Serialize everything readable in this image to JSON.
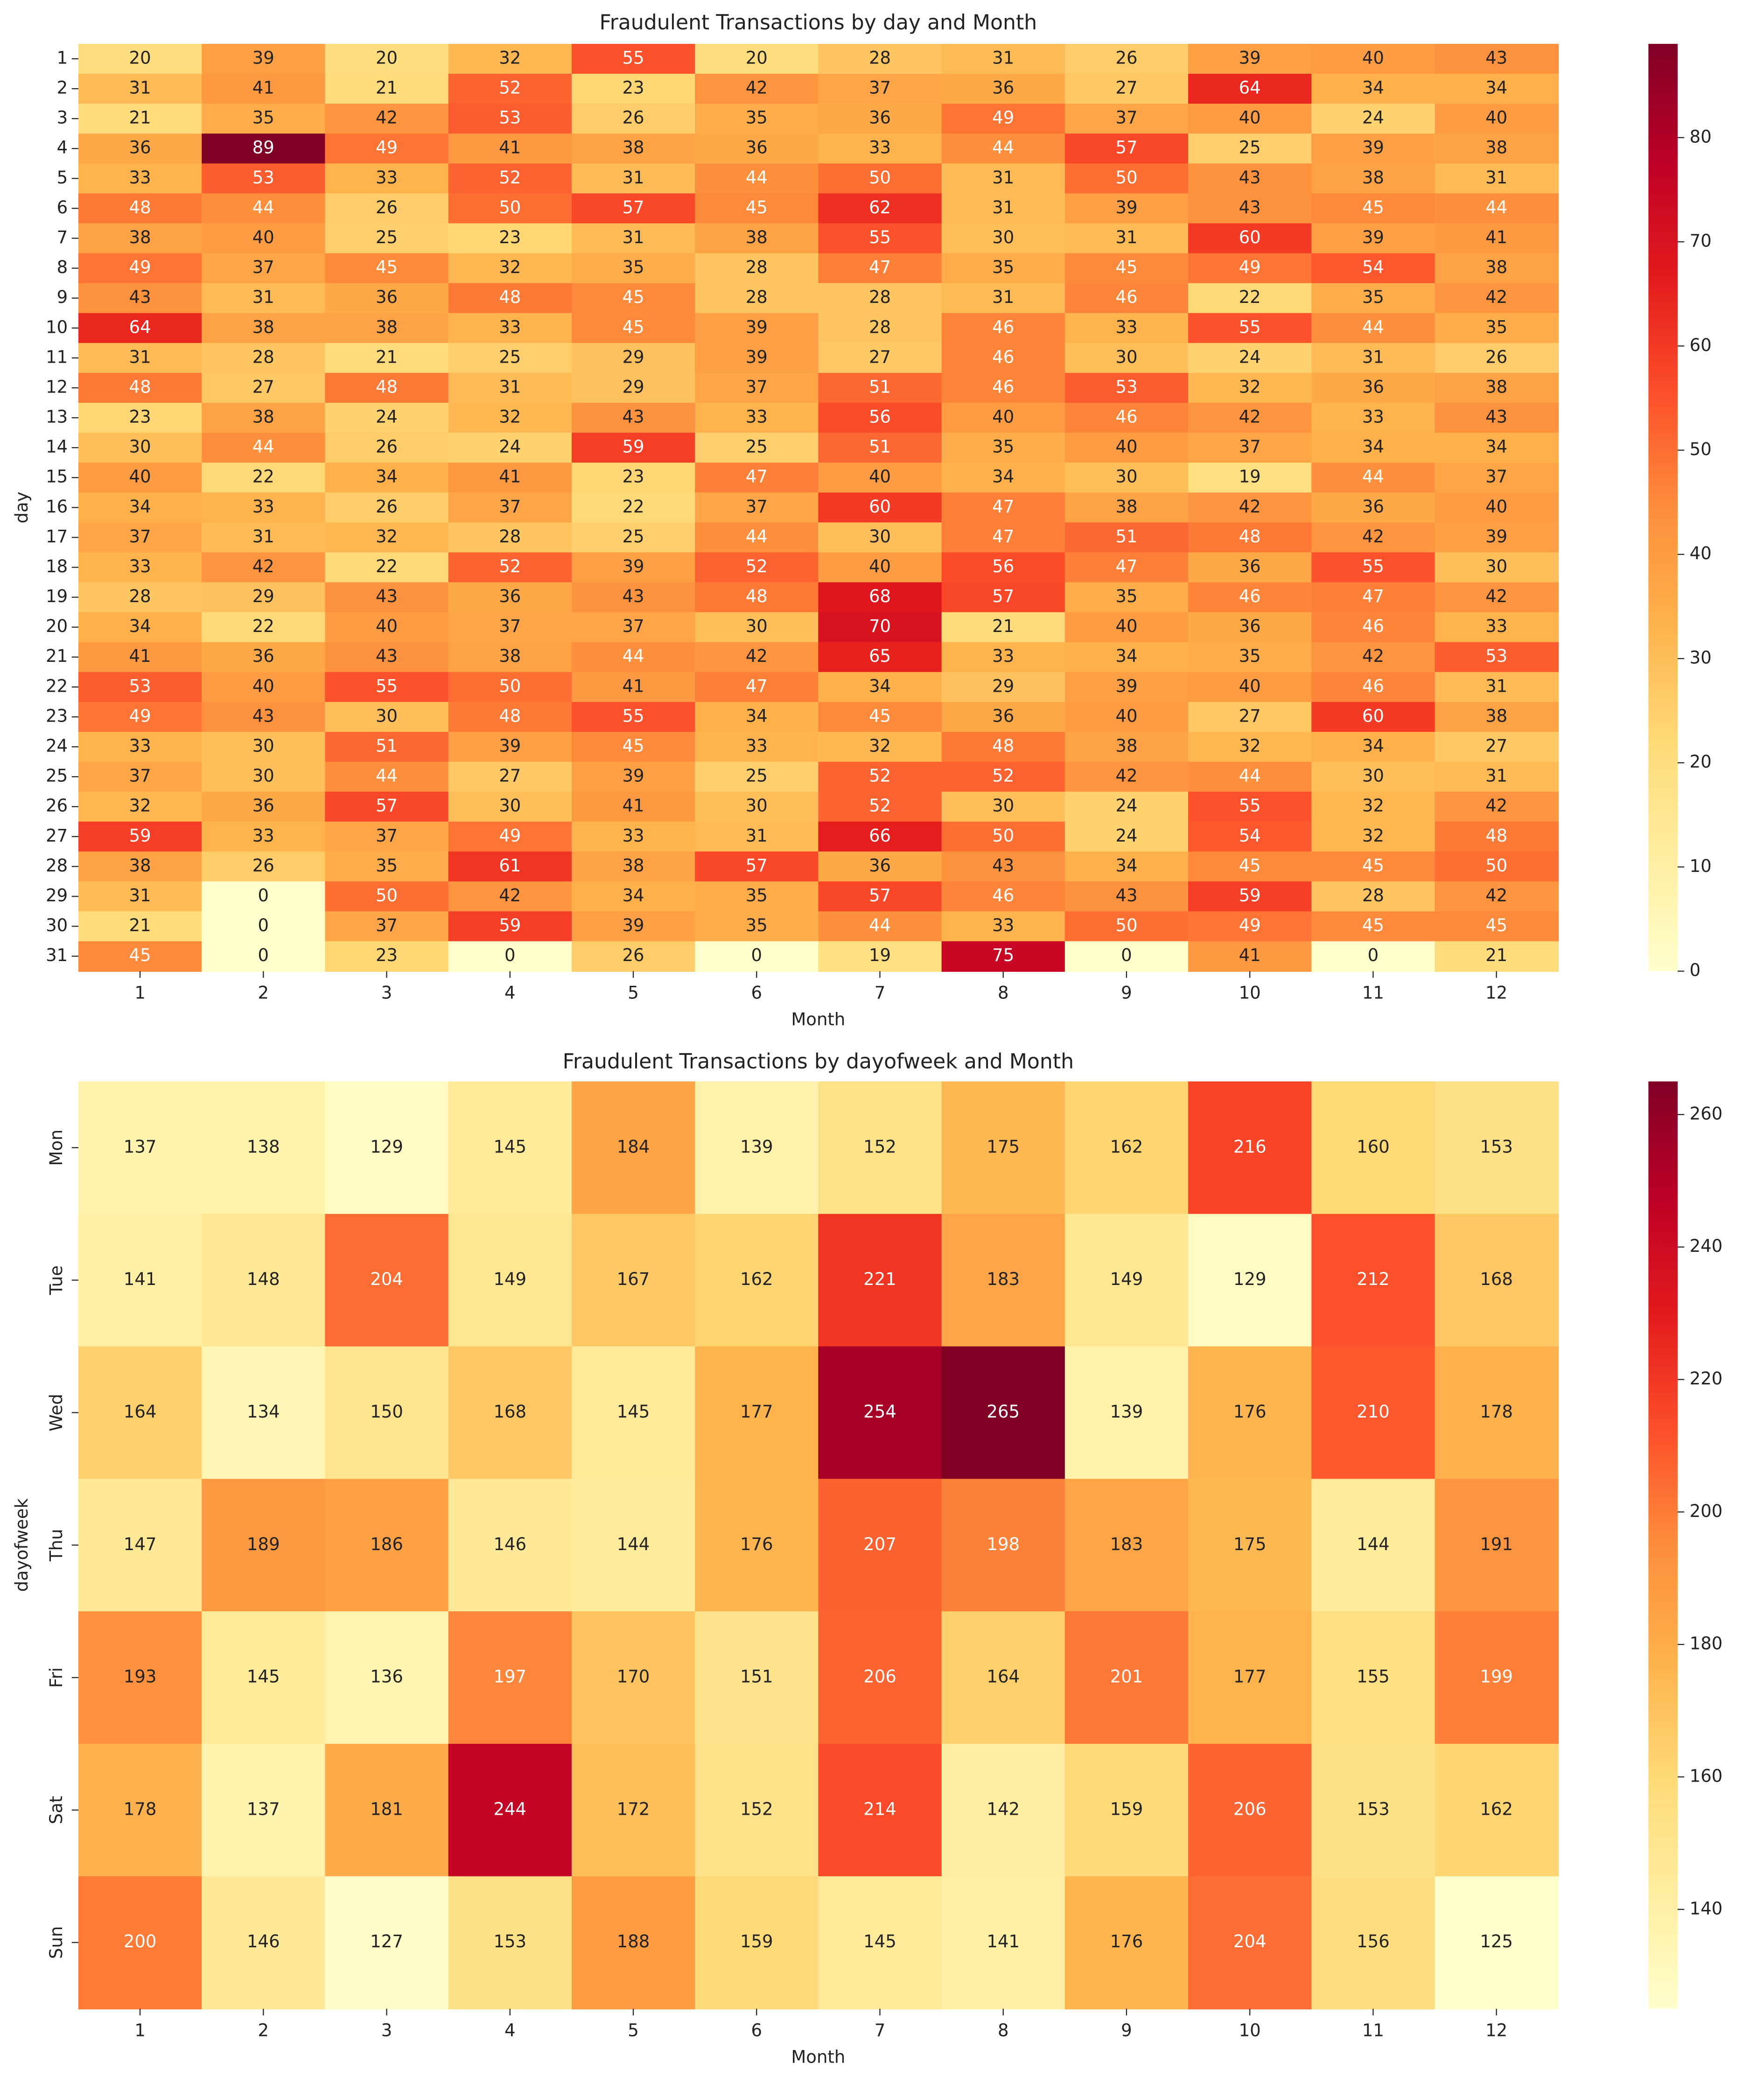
{
  "chart_data": [
    {
      "type": "heatmap",
      "title": "Fraudulent Transactions by day and Month",
      "xlabel": "Month",
      "ylabel": "day",
      "x": [
        1,
        2,
        3,
        4,
        5,
        6,
        7,
        8,
        9,
        10,
        11,
        12
      ],
      "y": [
        1,
        2,
        3,
        4,
        5,
        6,
        7,
        8,
        9,
        10,
        11,
        12,
        13,
        14,
        15,
        16,
        17,
        18,
        19,
        20,
        21,
        22,
        23,
        24,
        25,
        26,
        27,
        28,
        29,
        30,
        31
      ],
      "values": [
        [
          20,
          39,
          20,
          32,
          55,
          20,
          28,
          31,
          26,
          39,
          40,
          43
        ],
        [
          31,
          41,
          21,
          52,
          23,
          42,
          37,
          36,
          27,
          64,
          34,
          34
        ],
        [
          21,
          35,
          42,
          53,
          26,
          35,
          36,
          49,
          37,
          40,
          24,
          40
        ],
        [
          36,
          89,
          49,
          41,
          38,
          36,
          33,
          44,
          57,
          25,
          39,
          38
        ],
        [
          33,
          53,
          33,
          52,
          31,
          44,
          50,
          31,
          50,
          43,
          38,
          31
        ],
        [
          48,
          44,
          26,
          50,
          57,
          45,
          62,
          31,
          39,
          43,
          45,
          44
        ],
        [
          38,
          40,
          25,
          23,
          31,
          38,
          55,
          30,
          31,
          60,
          39,
          41
        ],
        [
          49,
          37,
          45,
          32,
          35,
          28,
          47,
          35,
          45,
          49,
          54,
          38
        ],
        [
          43,
          31,
          36,
          48,
          45,
          28,
          28,
          31,
          46,
          22,
          35,
          42
        ],
        [
          64,
          38,
          38,
          33,
          45,
          39,
          28,
          46,
          33,
          55,
          44,
          35
        ],
        [
          31,
          28,
          21,
          25,
          29,
          39,
          27,
          46,
          30,
          24,
          31,
          26
        ],
        [
          48,
          27,
          48,
          31,
          29,
          37,
          51,
          46,
          53,
          32,
          36,
          38
        ],
        [
          23,
          38,
          24,
          32,
          43,
          33,
          56,
          40,
          46,
          42,
          33,
          43
        ],
        [
          30,
          44,
          26,
          24,
          59,
          25,
          51,
          35,
          40,
          37,
          34,
          34
        ],
        [
          40,
          22,
          34,
          41,
          23,
          47,
          40,
          34,
          30,
          19,
          44,
          37
        ],
        [
          34,
          33,
          26,
          37,
          22,
          37,
          60,
          47,
          38,
          42,
          36,
          40
        ],
        [
          37,
          31,
          32,
          28,
          25,
          44,
          30,
          47,
          51,
          48,
          42,
          39
        ],
        [
          33,
          42,
          22,
          52,
          39,
          52,
          40,
          56,
          47,
          36,
          55,
          30
        ],
        [
          28,
          29,
          43,
          36,
          43,
          48,
          68,
          57,
          35,
          46,
          47,
          42
        ],
        [
          34,
          22,
          40,
          37,
          37,
          30,
          70,
          21,
          40,
          36,
          46,
          33
        ],
        [
          41,
          36,
          43,
          38,
          44,
          42,
          65,
          33,
          34,
          35,
          42,
          53
        ],
        [
          53,
          40,
          55,
          50,
          41,
          47,
          34,
          29,
          39,
          40,
          46,
          31
        ],
        [
          49,
          43,
          30,
          48,
          55,
          34,
          45,
          36,
          40,
          27,
          60,
          38
        ],
        [
          33,
          30,
          51,
          39,
          45,
          33,
          32,
          48,
          38,
          32,
          34,
          27
        ],
        [
          37,
          30,
          44,
          27,
          39,
          25,
          52,
          52,
          42,
          44,
          30,
          31
        ],
        [
          32,
          36,
          57,
          30,
          41,
          30,
          52,
          30,
          24,
          55,
          32,
          42
        ],
        [
          59,
          33,
          37,
          49,
          33,
          31,
          66,
          50,
          24,
          54,
          32,
          48
        ],
        [
          38,
          26,
          35,
          61,
          38,
          57,
          36,
          43,
          34,
          45,
          45,
          50
        ],
        [
          31,
          0,
          50,
          42,
          34,
          35,
          57,
          46,
          43,
          59,
          28,
          42
        ],
        [
          21,
          0,
          37,
          59,
          39,
          35,
          44,
          33,
          50,
          49,
          45,
          45
        ],
        [
          45,
          0,
          23,
          0,
          26,
          0,
          19,
          75,
          0,
          41,
          0,
          21
        ]
      ],
      "cmap": "YlOrRd",
      "zlim": [
        0,
        89
      ],
      "zticks": [
        0,
        10,
        20,
        30,
        40,
        50,
        60,
        70,
        80
      ]
    },
    {
      "type": "heatmap",
      "title": "Fraudulent Transactions by dayofweek and Month",
      "xlabel": "Month",
      "ylabel": "dayofweek",
      "x": [
        1,
        2,
        3,
        4,
        5,
        6,
        7,
        8,
        9,
        10,
        11,
        12
      ],
      "y": [
        "Mon",
        "Tue",
        "Wed",
        "Thu",
        "Fri",
        "Sat",
        "Sun"
      ],
      "values": [
        [
          137,
          138,
          129,
          145,
          184,
          139,
          152,
          175,
          162,
          216,
          160,
          153
        ],
        [
          141,
          148,
          204,
          149,
          167,
          162,
          221,
          183,
          149,
          129,
          212,
          168
        ],
        [
          164,
          134,
          150,
          168,
          145,
          177,
          254,
          265,
          139,
          176,
          210,
          178
        ],
        [
          147,
          189,
          186,
          146,
          144,
          176,
          207,
          198,
          183,
          175,
          144,
          191
        ],
        [
          193,
          145,
          136,
          197,
          170,
          151,
          206,
          164,
          201,
          177,
          155,
          199
        ],
        [
          178,
          137,
          181,
          244,
          172,
          152,
          214,
          142,
          159,
          206,
          153,
          162
        ],
        [
          200,
          146,
          127,
          153,
          188,
          159,
          145,
          141,
          176,
          204,
          156,
          125
        ]
      ],
      "cmap": "YlOrRd",
      "zlim": [
        125,
        265
      ],
      "zticks": [
        140,
        160,
        180,
        200,
        220,
        240,
        260
      ]
    }
  ]
}
